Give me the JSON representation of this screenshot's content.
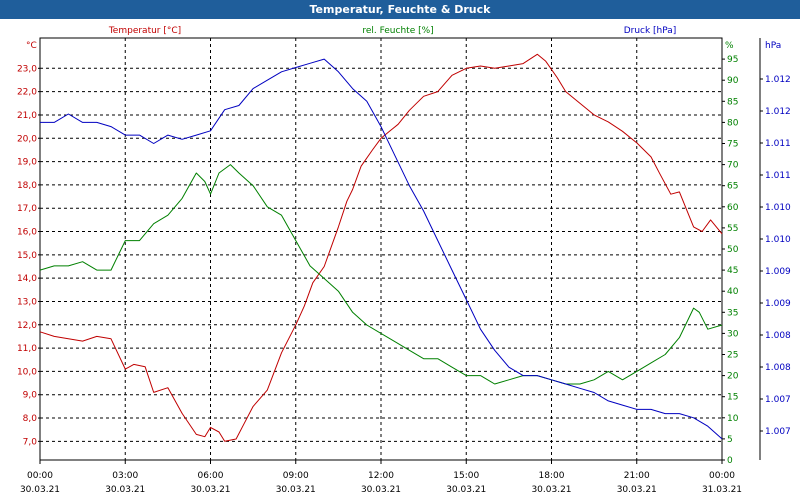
{
  "title": "Temperatur, Feuchte & Druck",
  "chart_data": {
    "type": "line",
    "x_range": [
      "2021-03-30 00:00",
      "2021-03-31 00:00"
    ],
    "x_ticks": [
      {
        "time": "00:00",
        "date": "30.03.21"
      },
      {
        "time": "03:00",
        "date": "30.03.21"
      },
      {
        "time": "06:00",
        "date": "30.03.21"
      },
      {
        "time": "09:00",
        "date": "30.03.21"
      },
      {
        "time": "12:00",
        "date": "30.03.21"
      },
      {
        "time": "15:00",
        "date": "30.03.21"
      },
      {
        "time": "18:00",
        "date": "30.03.21"
      },
      {
        "time": "21:00",
        "date": "30.03.21"
      },
      {
        "time": "00:00",
        "date": "31.03.21"
      }
    ],
    "grid": true,
    "axes": {
      "temperature": {
        "label": "Temperatur [°C]",
        "unit": "°C",
        "color": "#c00000",
        "ylim": [
          6.2,
          24.3
        ],
        "ticks": [
          "7,0",
          "8,0",
          "9,0",
          "10,0",
          "11,0",
          "12,0",
          "13,0",
          "14,0",
          "15,0",
          "16,0",
          "17,0",
          "18,0",
          "19,0",
          "20,0",
          "21,0",
          "22,0",
          "23,0"
        ]
      },
      "humidity": {
        "label": "rel. Feuchte [%]",
        "unit": "%",
        "color": "#008000",
        "ylim": [
          0,
          100
        ],
        "ticks": [
          "0",
          "5",
          "10",
          "15",
          "20",
          "25",
          "30",
          "35",
          "40",
          "45",
          "50",
          "55",
          "60",
          "65",
          "70",
          "75",
          "80",
          "85",
          "90",
          "95"
        ]
      },
      "pressure": {
        "label": "Druck [hPa]",
        "unit": "hPa",
        "color": "#0000c0",
        "tick_labels": [
          "1.007",
          "1.007",
          "1.008",
          "1.008",
          "1.009",
          "1.009",
          "1.010",
          "1.010",
          "1.011",
          "1.011",
          "1.012",
          "1.012"
        ]
      }
    },
    "series": [
      {
        "name": "Temperatur [°C]",
        "axis": "temperature",
        "color": "#c00000",
        "points": [
          [
            0,
            11.7
          ],
          [
            0.5,
            11.5
          ],
          [
            1,
            11.4
          ],
          [
            1.5,
            11.3
          ],
          [
            2,
            11.5
          ],
          [
            2.5,
            11.4
          ],
          [
            3,
            10.1
          ],
          [
            3.3,
            10.3
          ],
          [
            3.7,
            10.2
          ],
          [
            4,
            9.1
          ],
          [
            4.5,
            9.3
          ],
          [
            5,
            8.2
          ],
          [
            5.5,
            7.3
          ],
          [
            5.8,
            7.2
          ],
          [
            6,
            7.6
          ],
          [
            6.3,
            7.4
          ],
          [
            6.5,
            7.0
          ],
          [
            6.9,
            7.1
          ],
          [
            7.2,
            7.8
          ],
          [
            7.5,
            8.5
          ],
          [
            8,
            9.2
          ],
          [
            8.5,
            10.8
          ],
          [
            9,
            12.0
          ],
          [
            9.3,
            12.8
          ],
          [
            9.6,
            13.8
          ],
          [
            10,
            14.5
          ],
          [
            10.5,
            16.2
          ],
          [
            10.8,
            17.3
          ],
          [
            11,
            17.8
          ],
          [
            11.3,
            18.8
          ],
          [
            11.7,
            19.5
          ],
          [
            12,
            20.0
          ],
          [
            12.3,
            20.3
          ],
          [
            12.6,
            20.6
          ],
          [
            13,
            21.2
          ],
          [
            13.5,
            21.8
          ],
          [
            14,
            22.0
          ],
          [
            14.5,
            22.7
          ],
          [
            15,
            23.0
          ],
          [
            15.5,
            23.1
          ],
          [
            16,
            23.0
          ],
          [
            16.5,
            23.1
          ],
          [
            17,
            23.2
          ],
          [
            17.5,
            23.6
          ],
          [
            17.8,
            23.3
          ],
          [
            18.2,
            22.6
          ],
          [
            18.5,
            22.0
          ],
          [
            19,
            21.5
          ],
          [
            19.5,
            21.0
          ],
          [
            20,
            20.7
          ],
          [
            20.5,
            20.3
          ],
          [
            21,
            19.8
          ],
          [
            21.5,
            19.2
          ],
          [
            21.8,
            18.5
          ],
          [
            22.2,
            17.6
          ],
          [
            22.5,
            17.7
          ],
          [
            23,
            16.2
          ],
          [
            23.3,
            16.0
          ],
          [
            23.6,
            16.5
          ],
          [
            24,
            15.9
          ]
        ]
      },
      {
        "name": "rel. Feuchte [%]",
        "axis": "humidity",
        "color": "#008000",
        "points": [
          [
            0,
            45
          ],
          [
            0.5,
            46
          ],
          [
            1,
            46
          ],
          [
            1.5,
            47
          ],
          [
            2,
            45
          ],
          [
            2.5,
            45
          ],
          [
            3,
            52
          ],
          [
            3.5,
            52
          ],
          [
            4,
            56
          ],
          [
            4.5,
            58
          ],
          [
            5,
            62
          ],
          [
            5.5,
            68
          ],
          [
            5.8,
            66
          ],
          [
            6,
            63
          ],
          [
            6.3,
            68
          ],
          [
            6.7,
            70
          ],
          [
            7,
            68
          ],
          [
            7.5,
            65
          ],
          [
            8,
            60
          ],
          [
            8.5,
            58
          ],
          [
            9,
            52
          ],
          [
            9.5,
            46
          ],
          [
            10,
            43
          ],
          [
            10.5,
            40
          ],
          [
            11,
            35
          ],
          [
            11.5,
            32
          ],
          [
            12,
            30
          ],
          [
            12.5,
            28
          ],
          [
            13,
            26
          ],
          [
            13.5,
            24
          ],
          [
            14,
            24
          ],
          [
            14.5,
            22
          ],
          [
            15,
            20
          ],
          [
            15.5,
            20
          ],
          [
            16,
            18
          ],
          [
            16.5,
            19
          ],
          [
            17,
            20
          ],
          [
            17.5,
            20
          ],
          [
            18,
            19
          ],
          [
            18.5,
            18
          ],
          [
            19,
            18
          ],
          [
            19.5,
            19
          ],
          [
            20,
            21
          ],
          [
            20.5,
            19
          ],
          [
            21,
            21
          ],
          [
            21.5,
            23
          ],
          [
            22,
            25
          ],
          [
            22.5,
            29
          ],
          [
            23,
            36
          ],
          [
            23.2,
            35
          ],
          [
            23.5,
            31
          ],
          [
            24,
            32
          ]
        ]
      },
      {
        "name": "Druck [hPa]",
        "axis": "pressure",
        "color": "#0000c0",
        "points": [
          [
            0,
            80
          ],
          [
            0.5,
            80
          ],
          [
            1,
            82
          ],
          [
            1.5,
            80
          ],
          [
            2,
            80
          ],
          [
            2.5,
            79
          ],
          [
            3,
            77
          ],
          [
            3.5,
            77
          ],
          [
            4,
            75
          ],
          [
            4.5,
            77
          ],
          [
            5,
            76
          ],
          [
            5.5,
            77
          ],
          [
            6,
            78
          ],
          [
            6.5,
            83
          ],
          [
            7,
            84
          ],
          [
            7.5,
            88
          ],
          [
            8,
            90
          ],
          [
            8.5,
            92
          ],
          [
            9,
            93
          ],
          [
            9.5,
            94
          ],
          [
            10,
            95
          ],
          [
            10.5,
            92
          ],
          [
            11,
            88
          ],
          [
            11.5,
            85
          ],
          [
            12,
            79
          ],
          [
            12.5,
            72
          ],
          [
            13,
            65
          ],
          [
            13.5,
            59
          ],
          [
            14,
            52
          ],
          [
            14.5,
            45
          ],
          [
            15,
            38
          ],
          [
            15.5,
            31
          ],
          [
            16,
            26
          ],
          [
            16.5,
            22
          ],
          [
            17,
            20
          ],
          [
            17.5,
            20
          ],
          [
            18,
            19
          ],
          [
            18.5,
            18
          ],
          [
            19,
            17
          ],
          [
            19.5,
            16
          ],
          [
            20,
            14
          ],
          [
            20.5,
            13
          ],
          [
            21,
            12
          ],
          [
            21.5,
            12
          ],
          [
            22,
            11
          ],
          [
            22.5,
            11
          ],
          [
            23,
            10
          ],
          [
            23.5,
            8
          ],
          [
            24,
            5
          ]
        ]
      }
    ]
  }
}
